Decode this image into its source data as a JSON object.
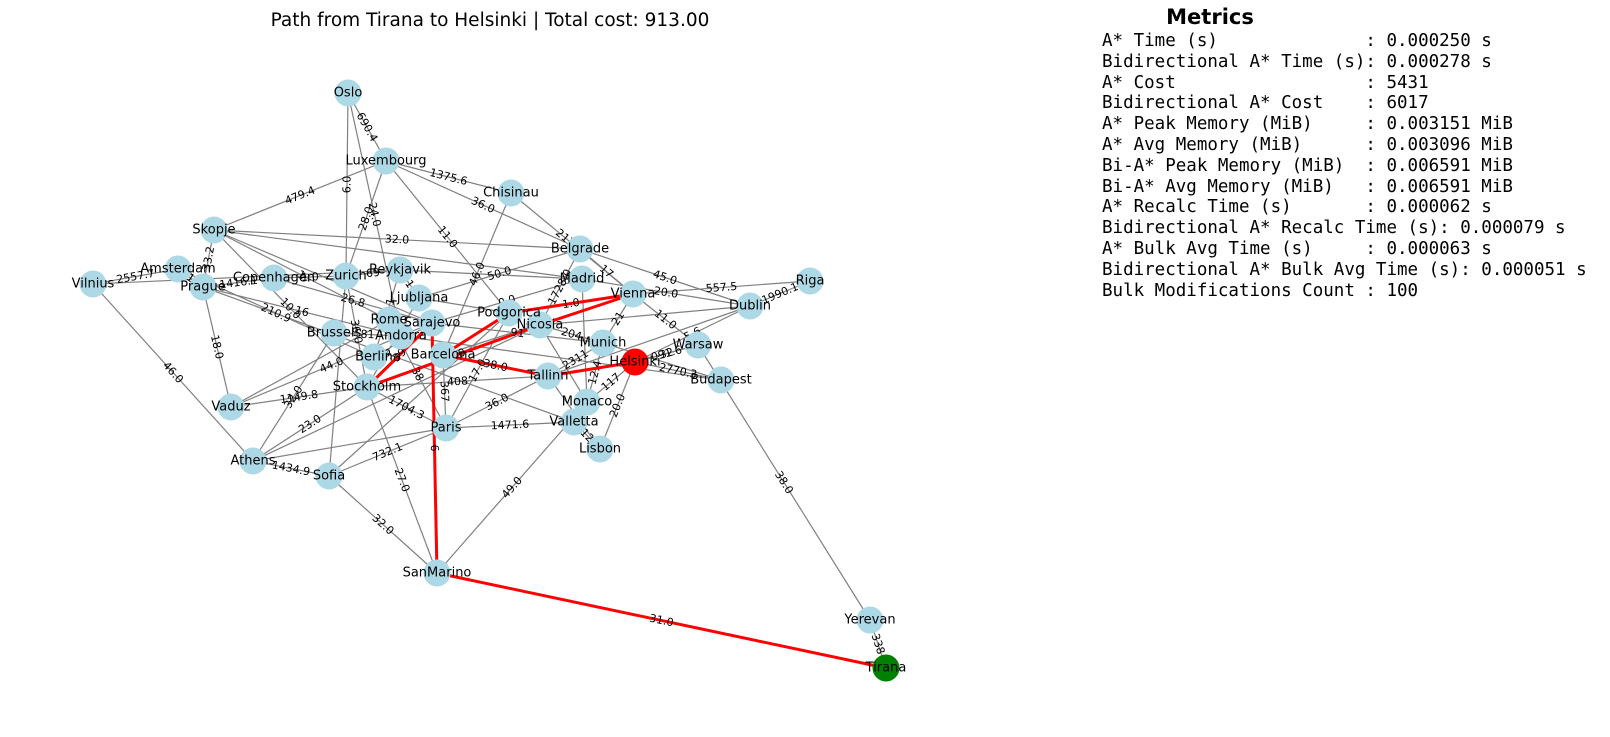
{
  "graph": {
    "title": "Path from Tirana to Helsinki | Total cost: 913.00",
    "colors": {
      "node": "#add8e6",
      "start": "#008000",
      "goal": "#ff0000",
      "path": "#ff0000",
      "edge": "#808080"
    },
    "start": "Tirana",
    "goal": "Helsinki",
    "nodes": [
      "Oslo",
      "Luxembourg",
      "Chisinau",
      "Skopje",
      "Belgrade",
      "Vilnius",
      "Amsterdam",
      "Prague",
      "Copenhagen",
      "Zurich",
      "Reykjavik",
      "Madrid",
      "Riga",
      "Vienna",
      "Dublin",
      "Ljubljana",
      "Podgorica",
      "Sarajevo",
      "Brussels",
      "Rome",
      "Andorra",
      "Nicosia",
      "Munich",
      "Warsaw",
      "Berlin",
      "Barcelona",
      "Helsinki",
      "Budapest",
      "Tallinn",
      "Stockholm",
      "Vaduz",
      "Monaco",
      "Paris",
      "Valletta",
      "Lisbon",
      "Athens",
      "Sofia",
      "SanMarino",
      "Yerevan",
      "Tirana"
    ],
    "edges": [
      {
        "a": "Oslo",
        "b": "Luxembourg",
        "label": "690.4"
      },
      {
        "a": "Oslo",
        "b": "Zurich",
        "label": "6.0"
      },
      {
        "a": "Oslo",
        "b": "Andorra",
        "label": "24.0"
      },
      {
        "a": "Luxembourg",
        "b": "Skopje",
        "label": "479.4"
      },
      {
        "a": "Luxembourg",
        "b": "Chisinau",
        "label": "1375.6"
      },
      {
        "a": "Luxembourg",
        "b": "Podgorica",
        "label": "11.0"
      },
      {
        "a": "Luxembourg",
        "b": "Belgrade",
        "label": "36.0"
      },
      {
        "a": "Luxembourg",
        "b": "Zurich",
        "label": "28.0"
      },
      {
        "a": "Chisinau",
        "b": "Vienna",
        "label": "2177.0"
      },
      {
        "a": "Chisinau",
        "b": "Barcelona",
        "label": "46.0"
      },
      {
        "a": "Skopje",
        "b": "Belgrade",
        "label": "32.0"
      },
      {
        "a": "Skopje",
        "b": "Stockholm",
        "label": "10.0"
      },
      {
        "a": "Skopje",
        "b": "Rome",
        "label": "1"
      },
      {
        "a": "Skopje",
        "b": "Prague",
        "label": "33.2"
      },
      {
        "a": "Skopje",
        "b": "Sarajevo",
        "label": ""
      },
      {
        "a": "Skopje",
        "b": "Madrid",
        "label": ""
      },
      {
        "a": "Vilnius",
        "b": "Amsterdam",
        "label": "2557.7"
      },
      {
        "a": "Vilnius",
        "b": "Athens",
        "label": "46.0"
      },
      {
        "a": "Vilnius",
        "b": "Reykjavik",
        "label": ""
      },
      {
        "a": "Amsterdam",
        "b": "Prague",
        "label": "118"
      },
      {
        "a": "Amsterdam",
        "b": "Berlin",
        "label": "210.9"
      },
      {
        "a": "Prague",
        "b": "Copenhagen",
        "label": "1416.1"
      },
      {
        "a": "Prague",
        "b": "Vaduz",
        "label": "18.0"
      },
      {
        "a": "Prague",
        "b": "Andorra",
        "label": "16"
      },
      {
        "a": "Prague",
        "b": "Valletta",
        "label": "19.0"
      },
      {
        "a": "Copenhagen",
        "b": "Zurich",
        "label": "1.0"
      },
      {
        "a": "Copenhagen",
        "b": "Sarajevo",
        "label": "26.8"
      },
      {
        "a": "Zurich",
        "b": "Reykjavik",
        "label": "69"
      },
      {
        "a": "Zurich",
        "b": "Stockholm",
        "label": "36.0"
      },
      {
        "a": "Zurich",
        "b": "Sofia",
        "label": ""
      },
      {
        "a": "Reykjavik",
        "b": "Ljubljana",
        "label": "1"
      },
      {
        "a": "Reykjavik",
        "b": "Berlin",
        "label": "451.1"
      },
      {
        "a": "Reykjavik",
        "b": "Madrid",
        "label": ""
      },
      {
        "a": "Belgrade",
        "b": "Dublin",
        "label": "45.0"
      },
      {
        "a": "Belgrade",
        "b": "Nicosia",
        "label": "1728.0"
      },
      {
        "a": "Belgrade",
        "b": "Vienna",
        "label": "17"
      },
      {
        "a": "Belgrade",
        "b": "Ljubljana",
        "label": "50.0"
      },
      {
        "a": "Madrid",
        "b": "Dublin",
        "label": "20.0"
      },
      {
        "a": "Madrid",
        "b": "Sarajevo",
        "label": "0.0"
      },
      {
        "a": "Madrid",
        "b": "Monaco",
        "label": ""
      },
      {
        "a": "Vienna",
        "b": "Riga",
        "label": "557.5"
      },
      {
        "a": "Vienna",
        "b": "Warsaw",
        "label": "11.0"
      },
      {
        "a": "Vienna",
        "b": "Munich",
        "label": "21"
      },
      {
        "a": "Vienna",
        "b": "Barcelona",
        "label": "50.0"
      },
      {
        "a": "Riga",
        "b": "Dublin",
        "label": "1990.1"
      },
      {
        "a": "Dublin",
        "b": "Helsinki",
        "label": "5.6"
      },
      {
        "a": "Dublin",
        "b": "Nicosia",
        "label": ""
      },
      {
        "a": "Dublin",
        "b": "Tallinn",
        "label": ""
      },
      {
        "a": "Warsaw",
        "b": "Helsinki",
        "label": "32"
      },
      {
        "a": "Warsaw",
        "b": "Yerevan",
        "label": "38.0"
      },
      {
        "a": "Ljubljana",
        "b": "Stockholm",
        "label": ""
      },
      {
        "a": "Ljubljana",
        "b": "Podgorica",
        "label": ""
      },
      {
        "a": "Podgorica",
        "b": "Paris",
        "label": "17.0"
      },
      {
        "a": "Podgorica",
        "b": "Sofia",
        "label": ""
      },
      {
        "a": "Sarajevo",
        "b": "Berlin",
        "label": "49.0"
      },
      {
        "a": "Sarajevo",
        "b": "Vaduz",
        "label": "44.0"
      },
      {
        "a": "Sarajevo",
        "b": "Munich",
        "label": "91"
      },
      {
        "a": "Brussels",
        "b": "Andorra",
        "label": "81"
      },
      {
        "a": "Brussels",
        "b": "Athens",
        "label": "32.0"
      },
      {
        "a": "Rome",
        "b": "Paris",
        "label": "38"
      },
      {
        "a": "Rome",
        "b": "Vaduz",
        "label": ""
      },
      {
        "a": "Andorra",
        "b": "Budapest",
        "label": ""
      },
      {
        "a": "Nicosia",
        "b": "Munich",
        "label": "204"
      },
      {
        "a": "Nicosia",
        "b": "Monaco",
        "label": ""
      },
      {
        "a": "Nicosia",
        "b": "Athens",
        "label": ""
      },
      {
        "a": "Munich",
        "b": "Monaco",
        "label": "12.4"
      },
      {
        "a": "Munich",
        "b": "Budapest",
        "label": ""
      },
      {
        "a": "Munich",
        "b": "Tallinn",
        "label": "2311"
      },
      {
        "a": "Helsinki",
        "b": "Budapest",
        "label": "2770.3"
      },
      {
        "a": "Helsinki",
        "b": "Warsaw",
        "label": "091.6"
      },
      {
        "a": "Helsinki",
        "b": "Monaco",
        "label": "117"
      },
      {
        "a": "Helsinki",
        "b": "Lisbon",
        "label": "20.0"
      },
      {
        "a": "Tallinn",
        "b": "Paris",
        "label": "36.0"
      },
      {
        "a": "Tallinn",
        "b": "Barcelona",
        "label": "38.0"
      },
      {
        "a": "Tallinn",
        "b": "Lisbon",
        "label": ""
      },
      {
        "a": "Stockholm",
        "b": "Vaduz",
        "label": "1149.8"
      },
      {
        "a": "Stockholm",
        "b": "Paris",
        "label": "1704.3"
      },
      {
        "a": "Stockholm",
        "b": "Athens",
        "label": "23.0"
      },
      {
        "a": "Stockholm",
        "b": "Tallinn",
        "label": "408"
      },
      {
        "a": "Stockholm",
        "b": "SanMarino",
        "label": "27.0"
      },
      {
        "a": "Paris",
        "b": "Valletta",
        "label": "1471.6"
      },
      {
        "a": "Paris",
        "b": "Sofia",
        "label": "732.1"
      },
      {
        "a": "Paris",
        "b": "Athens",
        "label": ""
      },
      {
        "a": "Barcelona",
        "b": "Paris",
        "label": "367"
      },
      {
        "a": "Valletta",
        "b": "Lisbon",
        "label": "12"
      },
      {
        "a": "Athens",
        "b": "Sofia",
        "label": "1434.9"
      },
      {
        "a": "Sofia",
        "b": "SanMarino",
        "label": "32.0"
      },
      {
        "a": "SanMarino",
        "b": "Monaco",
        "label": "49.0"
      },
      {
        "a": "Yerevan",
        "b": "Tirana",
        "label": "338"
      }
    ],
    "path_edges": [
      {
        "a": "Tirana",
        "b": "SanMarino",
        "label": "31.0"
      },
      {
        "a": "SanMarino",
        "b": "Sarajevo",
        "label": "6"
      },
      {
        "a": "Sarajevo",
        "b": "Stockholm",
        "label": "39"
      },
      {
        "a": "Stockholm",
        "b": "Nicosia",
        "label": "12.0"
      },
      {
        "a": "Nicosia",
        "b": "Vienna",
        "label": ""
      },
      {
        "a": "Vienna",
        "b": "Podgorica",
        "label": "1.0"
      },
      {
        "a": "Podgorica",
        "b": "Barcelona",
        "label": ""
      },
      {
        "a": "Barcelona",
        "b": "Tallinn",
        "label": ""
      },
      {
        "a": "Tallinn",
        "b": "Helsinki",
        "label": ""
      }
    ]
  },
  "metrics": {
    "title": "Metrics",
    "lines": [
      "A* Time (s)              : 0.000250 s",
      "Bidirectional A* Time (s): 0.000278 s",
      "A* Cost                  : 5431",
      "Bidirectional A* Cost    : 6017",
      "A* Peak Memory (MiB)     : 0.003151 MiB",
      "A* Avg Memory (MiB)      : 0.003096 MiB",
      "Bi-A* Peak Memory (MiB)  : 0.006591 MiB",
      "Bi-A* Avg Memory (MiB)   : 0.006591 MiB",
      "A* Recalc Time (s)       : 0.000062 s",
      "Bidirectional A* Recalc Time (s): 0.000079 s",
      "A* Bulk Avg Time (s)     : 0.000063 s",
      "Bidirectional A* Bulk Avg Time (s): 0.000051 s",
      "Bulk Modifications Count : 100"
    ]
  }
}
